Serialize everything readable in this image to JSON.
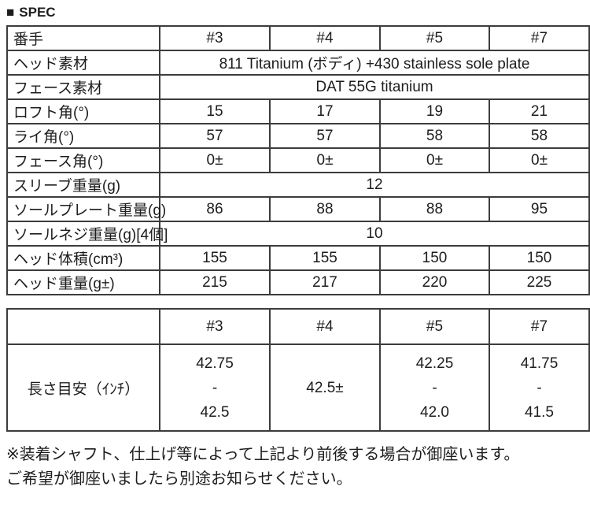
{
  "header": {
    "bullet": "■",
    "title": "SPEC"
  },
  "colors": {
    "border": "#3c3c3c",
    "text": "#1d1d1d",
    "background": "#ffffff"
  },
  "spec_table": {
    "rows": [
      {
        "label": "番手",
        "values": [
          "#3",
          "#4",
          "#5",
          "#7"
        ]
      },
      {
        "label": "ヘッド素材",
        "span": "811 Titanium (ボディ) +430 stainless sole plate"
      },
      {
        "label": "フェース素材",
        "span": "DAT 55G titanium"
      },
      {
        "label": "ロフト角(°)",
        "values": [
          "15",
          "17",
          "19",
          "21"
        ]
      },
      {
        "label": "ライ角(°)",
        "values": [
          "57",
          "57",
          "58",
          "58"
        ]
      },
      {
        "label": "フェース角(°)",
        "values": [
          "0±",
          "0±",
          "0±",
          "0±"
        ]
      },
      {
        "label": "スリーブ重量(g)",
        "span": "12"
      },
      {
        "label": "ソールプレート重量(g)",
        "values": [
          "86",
          "88",
          "88",
          "95"
        ]
      },
      {
        "label": "ソールネジ重量(g)[4個]",
        "span": "10"
      },
      {
        "label": "ヘッド体積(cm³)",
        "values": [
          "155",
          "155",
          "150",
          "150"
        ]
      },
      {
        "label": "ヘッド重量(g±)",
        "values": [
          "215",
          "217",
          "220",
          "225"
        ]
      }
    ]
  },
  "length_table": {
    "header_cells": [
      "",
      "#3",
      "#4",
      "#5",
      "#7"
    ],
    "row_label": "長さ目安（ｲﾝﾁ）",
    "cells": [
      [
        "42.75",
        "-",
        "42.5"
      ],
      [
        "42.5±"
      ],
      [
        "42.25",
        "-",
        "42.0"
      ],
      [
        "41.75",
        "-",
        "41.5"
      ]
    ]
  },
  "footnote": {
    "lines": [
      "※装着シャフト、仕上げ等によって上記より前後する場合が御座います。",
      "ご希望が御座いましたら別途お知らせください。"
    ]
  }
}
